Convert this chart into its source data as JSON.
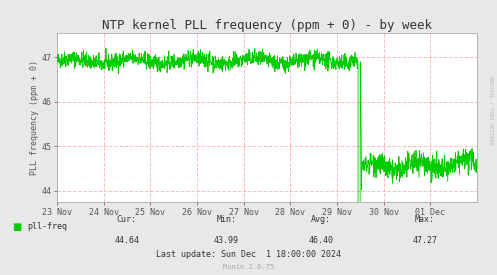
{
  "title": "NTP kernel PLL frequency (ppm + 0) - by week",
  "ylabel": "PLL frequency (ppm + 0)",
  "bg_color": "#e8e8e8",
  "plot_bg_color": "#ffffff",
  "grid_color_h": "#ffaaaa",
  "grid_color_v": "#ddaaaa",
  "line_color": "#00cc00",
  "yticks": [
    44,
    45,
    46,
    47
  ],
  "ymin": 43.75,
  "ymax": 47.55,
  "xlabels": [
    "23 Nov",
    "24 Nov",
    "25 Nov",
    "26 Nov",
    "27 Nov",
    "28 Nov",
    "29 Nov",
    "30 Nov",
    "01 Dec"
  ],
  "legend_label": "pll-freq",
  "legend_color": "#00cc00",
  "cur": "44.64",
  "min": "43.99",
  "avg": "46.40",
  "max": "47.27",
  "last_update": "Sun Dec  1 18:00:00 2024",
  "munin_version": "Munin 2.0.75",
  "rrdtool_label": "RRDTOOL / TOBI OETIKER",
  "title_fontsize": 9,
  "axis_fontsize": 6,
  "label_fontsize": 6,
  "tick_fontsize": 6
}
